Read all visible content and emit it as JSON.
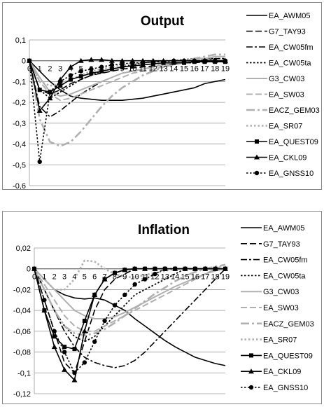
{
  "chart_data": [
    {
      "type": "line",
      "title": "Output",
      "x": [
        0,
        1,
        2,
        3,
        4,
        5,
        6,
        7,
        8,
        9,
        10,
        11,
        12,
        13,
        14,
        15,
        16,
        17,
        18,
        19
      ],
      "x_tick_labels": [
        "0",
        "1",
        "2",
        "3",
        "4",
        "5",
        "6",
        "7",
        "8",
        "9",
        "10",
        "11",
        "12",
        "13",
        "14",
        "15",
        "16",
        "17",
        "18",
        "19"
      ],
      "ylim": [
        -0.6,
        0.1
      ],
      "y_ticks": [
        0.1,
        0,
        -0.1,
        -0.2,
        -0.3,
        -0.4,
        -0.5,
        -0.6
      ],
      "y_tick_labels": [
        "0,1",
        "0",
        "-0,1",
        "-0,2",
        "-0,3",
        "-0,4",
        "-0,5",
        "-0,6"
      ],
      "grid": true,
      "legend_position": "right",
      "series": [
        {
          "name": "EA_AWM05",
          "values": [
            0,
            -0.05,
            -0.1,
            -0.14,
            -0.17,
            -0.18,
            -0.185,
            -0.19,
            -0.19,
            -0.19,
            -0.185,
            -0.18,
            -0.17,
            -0.16,
            -0.15,
            -0.14,
            -0.13,
            -0.11,
            -0.1,
            -0.09
          ]
        },
        {
          "name": "G7_TAY93",
          "values": [
            0,
            -0.14,
            -0.16,
            -0.14,
            -0.11,
            -0.09,
            -0.07,
            -0.06,
            -0.05,
            -0.04,
            -0.035,
            -0.03,
            -0.025,
            -0.02,
            -0.015,
            -0.01,
            -0.01,
            -0.005,
            0,
            0
          ]
        },
        {
          "name": "EA_CW05fm",
          "values": [
            0,
            -0.22,
            -0.27,
            -0.24,
            -0.2,
            -0.16,
            -0.13,
            -0.1,
            -0.08,
            -0.06,
            -0.05,
            -0.04,
            -0.03,
            -0.02,
            -0.01,
            -0.005,
            0,
            0.005,
            0.01,
            0.01
          ]
        },
        {
          "name": "EA_CW05ta",
          "values": [
            0,
            -0.14,
            -0.18,
            -0.15,
            -0.12,
            -0.09,
            -0.07,
            -0.05,
            -0.04,
            -0.03,
            -0.02,
            -0.01,
            -0.005,
            0,
            0,
            0.005,
            0.01,
            0.01,
            0.01,
            0.01
          ]
        },
        {
          "name": "G3_CW03",
          "values": [
            0,
            -0.08,
            -0.15,
            -0.17,
            -0.16,
            -0.14,
            -0.12,
            -0.1,
            -0.08,
            -0.06,
            -0.05,
            -0.04,
            -0.03,
            -0.02,
            -0.01,
            0,
            0.01,
            0.01,
            0.02,
            0.02
          ]
        },
        {
          "name": "EA_SW03",
          "values": [
            0,
            -0.1,
            -0.16,
            -0.19,
            -0.18,
            -0.16,
            -0.14,
            -0.12,
            -0.1,
            -0.08,
            -0.06,
            -0.05,
            -0.04,
            -0.03,
            -0.02,
            -0.01,
            0,
            0.01,
            0.02,
            0.02
          ]
        },
        {
          "name": "EACZ_GEM03",
          "values": [
            0,
            -0.28,
            -0.39,
            -0.41,
            -0.39,
            -0.34,
            -0.28,
            -0.22,
            -0.17,
            -0.13,
            -0.1,
            -0.07,
            -0.05,
            -0.03,
            -0.01,
            0,
            0.01,
            0.02,
            0.03,
            0.03
          ]
        },
        {
          "name": "EA_SR07",
          "values": [
            0,
            -0.1,
            -0.12,
            -0.11,
            -0.09,
            -0.07,
            -0.05,
            -0.04,
            -0.03,
            -0.02,
            -0.015,
            -0.01,
            -0.005,
            0,
            0,
            0,
            0,
            0,
            0,
            0
          ]
        },
        {
          "name": "EA_QUEST09",
          "values": [
            0,
            -0.14,
            -0.15,
            -0.12,
            -0.09,
            -0.075,
            -0.06,
            -0.05,
            -0.04,
            -0.03,
            -0.025,
            -0.02,
            -0.015,
            -0.01,
            -0.01,
            -0.01,
            -0.005,
            -0.005,
            -0.005,
            -0.005
          ]
        },
        {
          "name": "EA_CKL09",
          "values": [
            0,
            -0.24,
            -0.18,
            -0.09,
            -0.03,
            0,
            0.005,
            0.005,
            0,
            0,
            0,
            0,
            0,
            0,
            0,
            0,
            0,
            0,
            0,
            0
          ]
        },
        {
          "name": "EA_GNSS10",
          "values": [
            0,
            -0.485,
            -0.15,
            -0.1,
            -0.07,
            -0.05,
            -0.04,
            -0.03,
            -0.02,
            -0.015,
            -0.01,
            -0.01,
            -0.005,
            -0.005,
            0,
            0,
            0,
            0,
            0,
            0
          ]
        }
      ]
    },
    {
      "type": "line",
      "title": "Inflation",
      "x": [
        0,
        1,
        2,
        3,
        4,
        5,
        6,
        7,
        8,
        9,
        10,
        11,
        12,
        13,
        14,
        15,
        16,
        17,
        18,
        19
      ],
      "x_tick_labels": [
        "0",
        "1",
        "2",
        "3",
        "4",
        "5",
        "6",
        "7",
        "8",
        "9",
        "10",
        "11",
        "12",
        "13",
        "14",
        "15",
        "16",
        "17",
        "18",
        "19"
      ],
      "ylim": [
        -0.12,
        0.02
      ],
      "y_ticks": [
        0.02,
        0,
        -0.02,
        -0.04,
        -0.06,
        -0.08,
        -0.1,
        -0.12
      ],
      "y_tick_labels": [
        "0,02",
        "0",
        "-0,02",
        "-0,04",
        "-0,06",
        "-0,08",
        "-0,1",
        "-0,12"
      ],
      "grid": true,
      "legend_position": "right",
      "series": [
        {
          "name": "EA_AWM05",
          "values": [
            0,
            -0.01,
            -0.02,
            -0.025,
            -0.028,
            -0.029,
            -0.028,
            -0.03,
            -0.035,
            -0.04,
            -0.048,
            -0.055,
            -0.062,
            -0.069,
            -0.075,
            -0.08,
            -0.085,
            -0.088,
            -0.091,
            -0.093
          ]
        },
        {
          "name": "G7_TAY93",
          "values": [
            0,
            -0.03,
            -0.06,
            -0.09,
            -0.1,
            -0.07,
            -0.04,
            -0.02,
            -0.01,
            -0.005,
            0,
            0,
            0,
            0,
            0,
            0,
            0,
            0,
            0,
            0
          ]
        },
        {
          "name": "EA_CW05fm",
          "values": [
            0,
            -0.02,
            -0.04,
            -0.06,
            -0.075,
            -0.085,
            -0.09,
            -0.093,
            -0.095,
            -0.093,
            -0.088,
            -0.08,
            -0.07,
            -0.06,
            -0.05,
            -0.04,
            -0.03,
            -0.02,
            -0.01,
            0
          ]
        },
        {
          "name": "EA_CW05ta",
          "values": [
            0,
            -0.02,
            -0.04,
            -0.055,
            -0.065,
            -0.07,
            -0.065,
            -0.055,
            -0.045,
            -0.035,
            -0.025,
            -0.02,
            -0.015,
            -0.01,
            -0.005,
            0,
            0,
            0,
            0,
            0
          ]
        },
        {
          "name": "G3_CW03",
          "values": [
            0,
            -0.01,
            -0.02,
            -0.03,
            -0.04,
            -0.045,
            -0.048,
            -0.048,
            -0.046,
            -0.042,
            -0.037,
            -0.032,
            -0.027,
            -0.022,
            -0.017,
            -0.013,
            -0.009,
            -0.005,
            -0.002,
            0
          ]
        },
        {
          "name": "EA_SW03",
          "values": [
            0,
            -0.015,
            -0.03,
            -0.045,
            -0.055,
            -0.06,
            -0.06,
            -0.055,
            -0.05,
            -0.045,
            -0.04,
            -0.035,
            -0.03,
            -0.025,
            -0.02,
            -0.015,
            -0.01,
            -0.005,
            0,
            0.004
          ]
        },
        {
          "name": "EACZ_GEM03",
          "values": [
            0,
            -0.02,
            -0.04,
            -0.055,
            -0.062,
            -0.064,
            -0.062,
            -0.058,
            -0.052,
            -0.045,
            -0.038,
            -0.031,
            -0.024,
            -0.018,
            -0.012,
            -0.007,
            -0.003,
            0,
            0.002,
            0.004
          ]
        },
        {
          "name": "EA_SR07",
          "values": [
            0,
            -0.01,
            -0.02,
            -0.02,
            -0.01,
            0.008,
            0.007,
            0,
            -0.005,
            -0.008,
            -0.008,
            -0.006,
            -0.004,
            -0.002,
            0,
            0,
            0,
            0,
            0,
            0
          ]
        },
        {
          "name": "EA_QUEST09",
          "values": [
            0,
            -0.04,
            -0.065,
            -0.075,
            -0.077,
            -0.05,
            -0.025,
            -0.01,
            -0.004,
            -0.001,
            0,
            0,
            0,
            0,
            0,
            0,
            0,
            0,
            0,
            0
          ]
        },
        {
          "name": "EA_CKL09",
          "values": [
            0,
            -0.04,
            -0.075,
            -0.097,
            -0.107,
            -0.06,
            -0.025,
            -0.01,
            -0.004,
            -0.001,
            0,
            0,
            0,
            0,
            0,
            0,
            0,
            0,
            0,
            0
          ]
        },
        {
          "name": "EA_GNSS10",
          "values": [
            0,
            -0.03,
            -0.06,
            -0.08,
            -0.1,
            -0.09,
            -0.07,
            -0.05,
            -0.035,
            -0.025,
            -0.015,
            -0.01,
            -0.005,
            0,
            0,
            0,
            0,
            0,
            0,
            0
          ]
        }
      ]
    }
  ]
}
